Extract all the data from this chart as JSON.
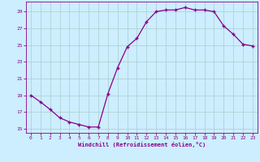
{
  "x": [
    0,
    1,
    2,
    3,
    4,
    5,
    6,
    7,
    8,
    9,
    10,
    11,
    12,
    13,
    14,
    15,
    16,
    17,
    18,
    19,
    20,
    21,
    22,
    23
  ],
  "y": [
    19,
    18.2,
    17.3,
    16.3,
    15.8,
    15.5,
    15.2,
    15.2,
    19.2,
    22.3,
    24.8,
    25.8,
    27.8,
    29.0,
    29.2,
    29.2,
    29.5,
    29.2,
    29.2,
    29.0,
    27.3,
    26.3,
    25.1,
    24.9
  ],
  "ylim": [
    14.5,
    30.2
  ],
  "xlim": [
    -0.5,
    23.5
  ],
  "yticks": [
    15,
    17,
    19,
    21,
    23,
    25,
    27,
    29
  ],
  "xticks": [
    0,
    1,
    2,
    3,
    4,
    5,
    6,
    7,
    8,
    9,
    10,
    11,
    12,
    13,
    14,
    15,
    16,
    17,
    18,
    19,
    20,
    21,
    22,
    23
  ],
  "xlabel": "Windchill (Refroidissement éolien,°C)",
  "line_color": "#880088",
  "marker": "+",
  "bg_color": "#cceeff",
  "grid_color": "#aacccc",
  "tick_label_color": "#880088",
  "xlabel_color": "#880088",
  "axis_color": "#880088"
}
